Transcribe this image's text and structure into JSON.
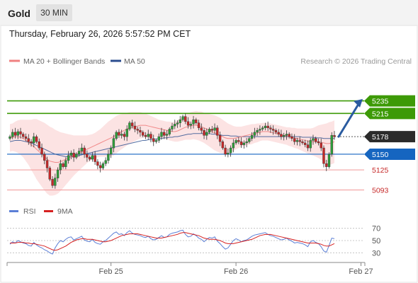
{
  "header": {
    "instrument": "Gold",
    "timeframe": "30 MIN",
    "datetime": "Thursday, February 26, 2026 5:57:52 PM CET"
  },
  "colors": {
    "bull": "#2e9e3a",
    "bear": "#c62828",
    "ma20": "#f08080",
    "ma50": "#2b4d8f",
    "band": "#fbd9d9",
    "resistance": "#3d9a07",
    "support": "#1565c0",
    "minor": "#f19797",
    "arrow": "#2a5ba0",
    "rsi": "#5b7fd6",
    "rsi_ma": "#d62020"
  },
  "legend": {
    "ma20": "MA 20 + Bollinger Bands",
    "ma50": "MA 50",
    "copyright": "Research © 2026 Trading Central"
  },
  "rsi_legend": {
    "rsi": "RSI",
    "ma": "9MA"
  },
  "chart_data": [
    {
      "type": "candlestick",
      "title": "Gold",
      "interval": "30 MIN",
      "y_range": [
        5080,
        5265
      ],
      "x_ticks": [
        {
          "label": "Feb 25",
          "index": 38
        },
        {
          "label": "Feb 26",
          "index": 85
        },
        {
          "label": "Feb 27",
          "index": 132
        }
      ],
      "levels": [
        {
          "value": 5235,
          "label": "5235",
          "kind": "resistance"
        },
        {
          "value": 5215,
          "label": "5215",
          "kind": "resistance"
        },
        {
          "value": 5178,
          "label": "5178",
          "kind": "current"
        },
        {
          "value": 5150,
          "label": "5150",
          "kind": "support"
        },
        {
          "value": 5125,
          "label": "5125",
          "kind": "minor"
        },
        {
          "value": 5093,
          "label": "5093",
          "kind": "minor"
        }
      ],
      "forecast_arrow": {
        "from": 5178,
        "to": 5238
      },
      "closes": [
        5178,
        5185,
        5180,
        5186,
        5182,
        5178,
        5175,
        5170,
        5168,
        5178,
        5170,
        5160,
        5150,
        5140,
        5128,
        5110,
        5100,
        5112,
        5125,
        5135,
        5130,
        5140,
        5148,
        5152,
        5145,
        5150,
        5155,
        5160,
        5150,
        5145,
        5142,
        5148,
        5138,
        5132,
        5128,
        5135,
        5140,
        5150,
        5160,
        5175,
        5185,
        5180,
        5182,
        5178,
        5190,
        5200,
        5195,
        5190,
        5188,
        5185,
        5180,
        5178,
        5182,
        5175,
        5170,
        5172,
        5178,
        5185,
        5180,
        5182,
        5190,
        5195,
        5198,
        5200,
        5205,
        5210,
        5202,
        5196,
        5198,
        5205,
        5200,
        5192,
        5188,
        5180,
        5185,
        5190,
        5188,
        5192,
        5180,
        5170,
        5160,
        5150,
        5152,
        5160,
        5168,
        5172,
        5170,
        5165,
        5168,
        5170,
        5175,
        5180,
        5185,
        5188,
        5190,
        5192,
        5195,
        5192,
        5190,
        5188,
        5185,
        5182,
        5178,
        5180,
        5182,
        5178,
        5175,
        5170,
        5172,
        5170,
        5168,
        5165,
        5160,
        5172,
        5175,
        5170,
        5168,
        5160,
        5135,
        5130,
        5150,
        5180,
        5178
      ],
      "ma20": [
        5176,
        5177,
        5178,
        5178,
        5177,
        5175,
        5172,
        5169,
        5165,
        5162,
        5158,
        5154,
        5150,
        5146,
        5142,
        5139,
        5138,
        5137,
        5137,
        5138,
        5140,
        5142,
        5144,
        5146,
        5148,
        5150,
        5152,
        5154,
        5156,
        5158,
        5160,
        5162,
        5164,
        5166,
        5168,
        5170,
        5172,
        5174,
        5176,
        5178,
        5181,
        5184,
        5186,
        5188,
        5190,
        5192,
        5193,
        5194,
        5195,
        5196,
        5196,
        5196,
        5195,
        5194,
        5193,
        5192,
        5191,
        5190,
        5189,
        5188,
        5187,
        5186,
        5186,
        5187,
        5189,
        5191,
        5193,
        5194,
        5195,
        5196,
        5196,
        5195,
        5194,
        5192,
        5190,
        5188,
        5186,
        5184,
        5182,
        5180,
        5178,
        5176,
        5175,
        5175,
        5175,
        5176,
        5177,
        5178,
        5179,
        5180,
        5181,
        5182,
        5183,
        5184,
        5185,
        5186,
        5186,
        5186,
        5185,
        5184,
        5183,
        5182,
        5181,
        5180,
        5179,
        5178,
        5177,
        5176,
        5175,
        5174,
        5173,
        5172,
        5171,
        5170,
        5170,
        5170,
        5170,
        5169,
        5168,
        5167,
        5167,
        5168,
        5170
      ],
      "bb_width": [
        22,
        22,
        24,
        26,
        28,
        30,
        33,
        36,
        40,
        44,
        48,
        50,
        52,
        54,
        55,
        55,
        54,
        52,
        50,
        47,
        44,
        41,
        38,
        35,
        32,
        30,
        28,
        26,
        24,
        22,
        21,
        20,
        20,
        21,
        22,
        24,
        26,
        28,
        29,
        30,
        30,
        29,
        28,
        27,
        26,
        25,
        24,
        23,
        22,
        21,
        20,
        19,
        18,
        17,
        16,
        15,
        14,
        14,
        14,
        14,
        15,
        15,
        16,
        17,
        18,
        19,
        20,
        21,
        22,
        22,
        23,
        23,
        24,
        24,
        25,
        26,
        27,
        28,
        28,
        28,
        27,
        26,
        24,
        22,
        20,
        18,
        17,
        16,
        16,
        16,
        16,
        16,
        15,
        15,
        14,
        14,
        14,
        14,
        14,
        14,
        14,
        14,
        14,
        14,
        14,
        15,
        15,
        16,
        16,
        17,
        18,
        19,
        20,
        21,
        22,
        24,
        26,
        28,
        30,
        32,
        34,
        34,
        34
      ],
      "ma50": [
        5170,
        5171,
        5172,
        5172,
        5172,
        5171,
        5170,
        5169,
        5168,
        5166,
        5164,
        5162,
        5160,
        5158,
        5156,
        5154,
        5152,
        5150,
        5149,
        5148,
        5147,
        5146,
        5146,
        5146,
        5146,
        5147,
        5148,
        5149,
        5150,
        5151,
        5152,
        5153,
        5154,
        5155,
        5156,
        5157,
        5158,
        5159,
        5160,
        5161,
        5162,
        5163,
        5164,
        5165,
        5166,
        5167,
        5168,
        5169,
        5170,
        5171,
        5172,
        5172,
        5173,
        5173,
        5174,
        5174,
        5175,
        5175,
        5176,
        5176,
        5177,
        5177,
        5178,
        5178,
        5179,
        5180,
        5181,
        5182,
        5182,
        5183,
        5183,
        5183,
        5183,
        5183,
        5183,
        5183,
        5182,
        5182,
        5181,
        5181,
        5180,
        5180,
        5180,
        5179,
        5179,
        5179,
        5178,
        5178,
        5178,
        5178,
        5178,
        5178,
        5178,
        5178,
        5178,
        5178,
        5178,
        5178,
        5178,
        5178,
        5178,
        5178,
        5178,
        5178,
        5178,
        5178,
        5178,
        5178,
        5178,
        5178,
        5177,
        5177,
        5177,
        5177,
        5177,
        5176,
        5176,
        5176,
        5175,
        5175,
        5175,
        5175,
        5175
      ],
      "rsi_y_range": [
        20,
        80
      ],
      "rsi_ticks": [
        70,
        50,
        30
      ],
      "rsi": [
        44,
        48,
        46,
        50,
        48,
        46,
        45,
        42,
        41,
        47,
        43,
        40,
        38,
        35,
        33,
        30,
        28,
        38,
        45,
        50,
        48,
        52,
        55,
        56,
        51,
        53,
        55,
        57,
        51,
        49,
        48,
        52,
        47,
        45,
        44,
        48,
        50,
        54,
        58,
        62,
        64,
        60,
        61,
        58,
        63,
        66,
        62,
        60,
        59,
        58,
        56,
        55,
        57,
        53,
        51,
        52,
        55,
        58,
        55,
        56,
        60,
        62,
        63,
        64,
        66,
        67,
        60,
        56,
        57,
        61,
        58,
        54,
        52,
        48,
        52,
        55,
        54,
        56,
        49,
        45,
        40,
        36,
        38,
        44,
        50,
        53,
        51,
        48,
        50,
        51,
        54,
        57,
        59,
        60,
        61,
        62,
        63,
        60,
        58,
        57,
        55,
        53,
        51,
        52,
        54,
        51,
        49,
        46,
        47,
        46,
        45,
        43,
        40,
        48,
        50,
        47,
        45,
        40,
        33,
        31,
        42,
        54,
        53
      ],
      "rsi_ma": [
        46,
        46,
        46,
        47,
        47,
        47,
        46,
        46,
        45,
        45,
        44,
        43,
        42,
        41,
        39,
        37,
        35,
        34,
        35,
        37,
        39,
        41,
        44,
        47,
        49,
        51,
        52,
        53,
        53,
        52,
        52,
        52,
        51,
        50,
        49,
        48,
        48,
        49,
        50,
        52,
        54,
        56,
        58,
        59,
        60,
        61,
        61,
        61,
        61,
        60,
        59,
        58,
        57,
        56,
        55,
        54,
        54,
        54,
        55,
        56,
        57,
        58,
        59,
        60,
        62,
        63,
        63,
        62,
        61,
        60,
        59,
        58,
        56,
        54,
        53,
        52,
        52,
        52,
        51,
        50,
        48,
        46,
        45,
        45,
        45,
        46,
        47,
        48,
        49,
        50,
        51,
        52,
        54,
        56,
        58,
        59,
        60,
        60,
        60,
        59,
        58,
        57,
        56,
        55,
        54,
        53,
        52,
        51,
        50,
        49,
        48,
        47,
        46,
        46,
        46,
        46,
        45,
        44,
        42,
        41,
        41,
        43,
        45
      ]
    }
  ]
}
